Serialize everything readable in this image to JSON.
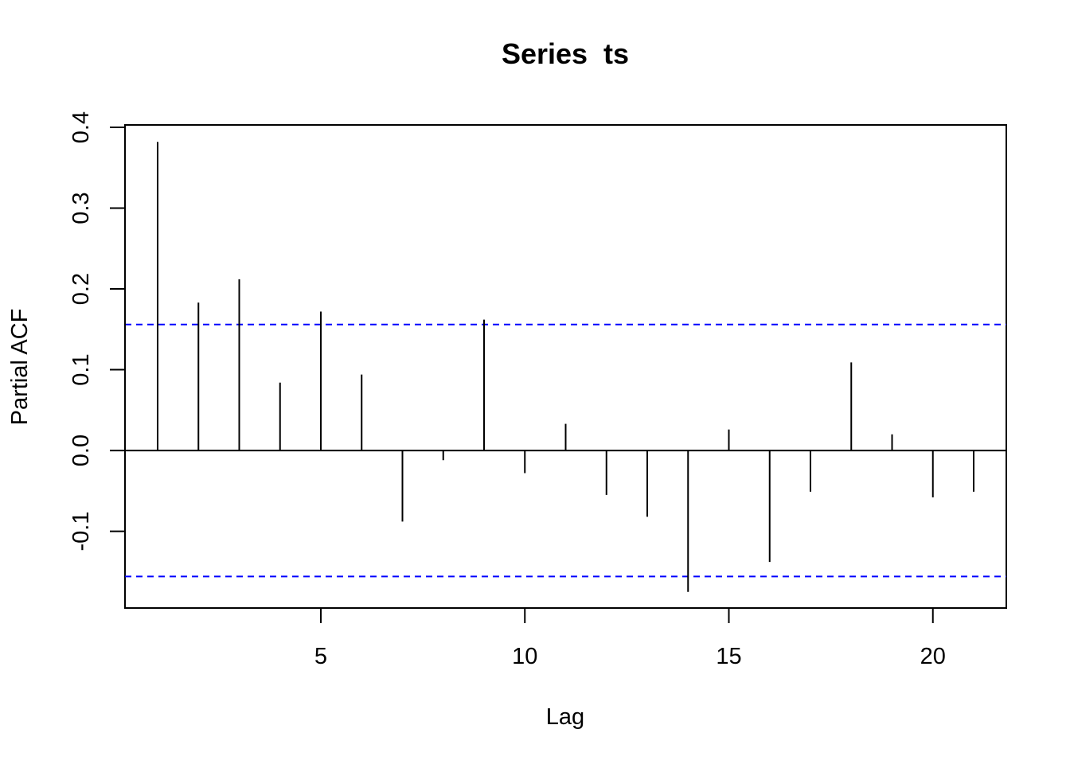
{
  "chart_data": {
    "type": "bar",
    "title": "Series  ts",
    "xlabel": "Lag",
    "ylabel": "Partial ACF",
    "x": [
      1,
      2,
      3,
      4,
      5,
      6,
      7,
      8,
      9,
      10,
      11,
      12,
      13,
      14,
      15,
      16,
      17,
      18,
      19,
      20,
      21
    ],
    "values": [
      0.382,
      0.183,
      0.212,
      0.084,
      0.172,
      0.094,
      -0.088,
      -0.012,
      0.162,
      -0.028,
      0.033,
      -0.055,
      -0.082,
      -0.175,
      0.026,
      -0.138,
      -0.051,
      0.109,
      0.02,
      -0.058,
      -0.051
    ],
    "xlim": [
      0.2,
      21.8
    ],
    "ylim": [
      -0.195,
      0.403
    ],
    "xticks": [
      5,
      10,
      15,
      20
    ],
    "xtick_labels": [
      "5",
      "10",
      "15",
      "20"
    ],
    "yticks": [
      -0.1,
      0.0,
      0.1,
      0.2,
      0.3,
      0.4
    ],
    "ytick_labels": [
      "-0.1",
      "0.0",
      "0.1",
      "0.2",
      "0.3",
      "0.4"
    ],
    "confidence_bounds": [
      0.156,
      -0.156
    ],
    "confidence_color": "#0000ff",
    "bar_color": "#000000",
    "grid": false,
    "legend": "none"
  }
}
